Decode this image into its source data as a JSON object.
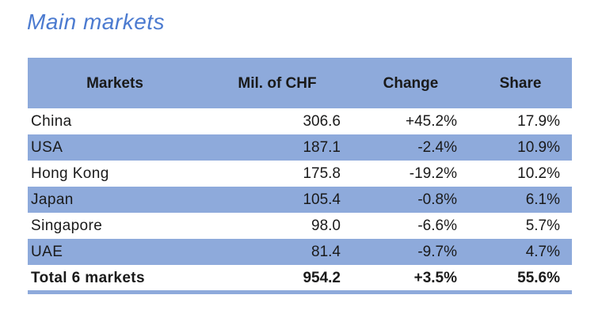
{
  "title": "Main markets",
  "colors": {
    "stripe_blue": "#8EAADB",
    "title_blue": "#4C7BD0",
    "text_color": "#1A1A1A",
    "border_blue": "#8EAADB"
  },
  "table": {
    "headers": [
      "Markets",
      "Mil. of CHF",
      "Change",
      "Share"
    ],
    "rows": [
      {
        "market": "China",
        "chf": "306.6",
        "change": "+45.2%",
        "share": "17.9%"
      },
      {
        "market": "USA",
        "chf": "187.1",
        "change": "-2.4%",
        "share": "10.9%"
      },
      {
        "market": "Hong Kong",
        "chf": "175.8",
        "change": "-19.2%",
        "share": "10.2%"
      },
      {
        "market": "Japan",
        "chf": "105.4",
        "change": "-0.8%",
        "share": "6.1%"
      },
      {
        "market": "Singapore",
        "chf": "98.0",
        "change": "-6.6%",
        "share": "5.7%"
      },
      {
        "market": "UAE",
        "chf": "81.4",
        "change": "-9.7%",
        "share": "4.7%"
      }
    ],
    "total": {
      "market": "Total 6 markets",
      "chf": "954.2",
      "change": "+3.5%",
      "share": "55.6%"
    }
  }
}
